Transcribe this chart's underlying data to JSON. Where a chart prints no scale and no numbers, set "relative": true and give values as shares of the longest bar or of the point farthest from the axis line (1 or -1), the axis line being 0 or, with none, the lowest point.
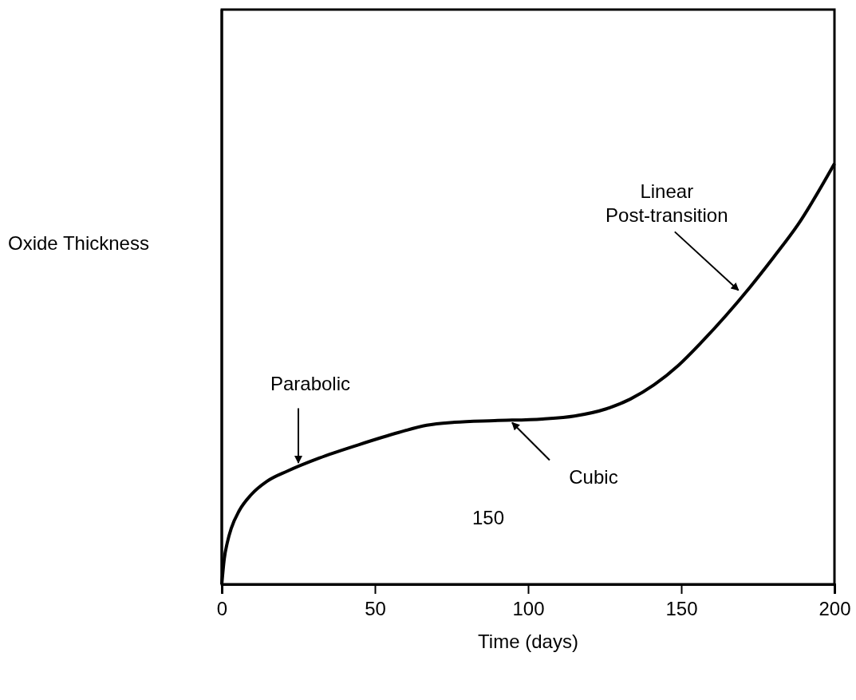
{
  "chart_data": {
    "type": "line",
    "relative": true,
    "xlabel": "Time (days)",
    "ylabel": "Oxide Thickness",
    "xlim": [
      0,
      200
    ],
    "xticks": [
      0,
      50,
      100,
      150,
      200
    ],
    "tick_labels": "x",
    "grid": false,
    "marker": "none",
    "line_style": "solid",
    "series": [
      {
        "color": "#000000",
        "x": [
          0,
          0.8,
          1.8,
          3.1,
          5.7,
          9.6,
          14.8,
          21.4,
          31.8,
          44.8,
          57.8,
          66.9,
          76,
          89,
          104.7,
          115.1,
          125.5,
          133.3,
          141.1,
          149,
          156.8,
          164.6,
          172.4,
          180.2,
          188,
          200
        ],
        "values": [
          0,
          0.06,
          0.099,
          0.133,
          0.175,
          0.213,
          0.245,
          0.269,
          0.3,
          0.332,
          0.361,
          0.378,
          0.385,
          0.389,
          0.393,
          0.4,
          0.417,
          0.44,
          0.474,
          0.52,
          0.577,
          0.639,
          0.706,
          0.778,
          0.854,
          1
        ]
      }
    ],
    "annotations": [
      {
        "text": "Parabolic",
        "x": 25,
        "y": 0.28
      },
      {
        "text": "Cubic",
        "x": 94,
        "y": 0.39
      },
      {
        "text": "Linear\nPost-transition",
        "x": 170,
        "y": 0.69
      },
      "150"
    ]
  }
}
